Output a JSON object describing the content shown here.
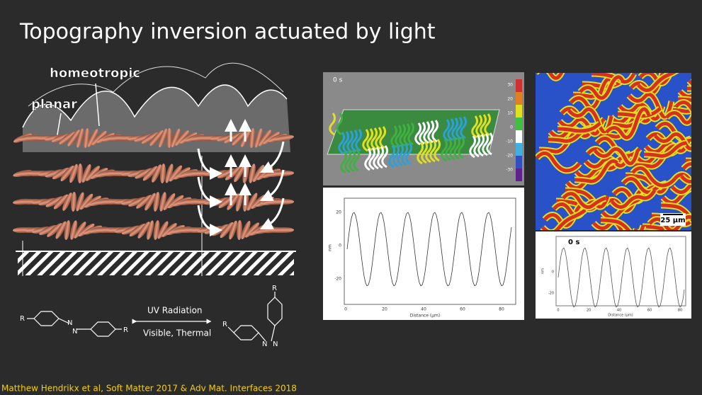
{
  "title": "Topography inversion actuated by light",
  "diagram": {
    "homeotropic": "homeotropic",
    "planar": "planar"
  },
  "reaction": {
    "forward": "UV Radiation",
    "reverse": "Visible, Thermal",
    "substituent": "R",
    "nitrogen": "N"
  },
  "surface_panel": {
    "time": "0 s",
    "colorbar_ticks": [
      30,
      20,
      10,
      0,
      -10,
      -20,
      -30
    ]
  },
  "profile_panel": {
    "yticks": [
      20,
      0,
      -20
    ],
    "xticks": [
      0,
      20,
      40,
      60,
      80
    ],
    "xlabel": "Distance (µm)",
    "ylabel": "nm"
  },
  "map_panel": {
    "scale": "25 µm"
  },
  "profile_panel_2": {
    "time": "0 s",
    "yticks": [
      0,
      -20
    ],
    "xticks": [
      0,
      20,
      40,
      60,
      80
    ],
    "xlabel": "Distance (µm)",
    "ylabel": "nm"
  },
  "citation": "Matthew Hendrikx et al, Soft Matter 2017 & Adv Mat. Interfaces 2018"
}
